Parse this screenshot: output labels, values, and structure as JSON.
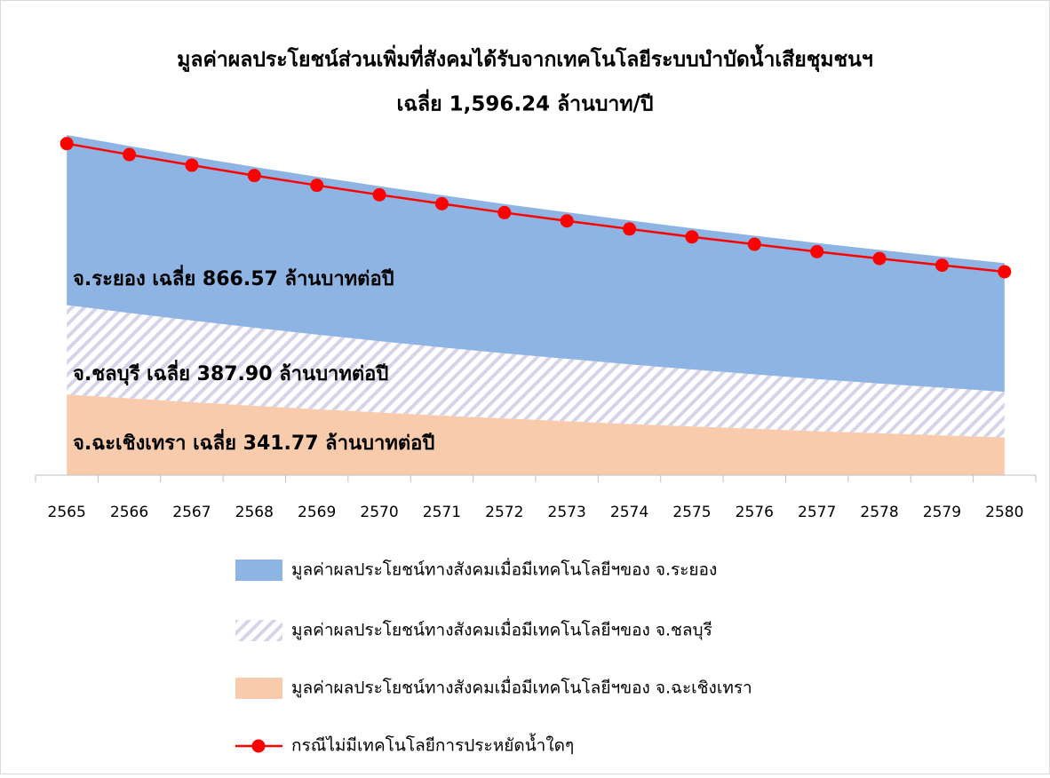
{
  "chart_data": {
    "type": "stacked_area",
    "title": "มูลค่าผลประโยชน์ส่วนเพิ่มที่สังคมได้รับจากเทคโนโลยีระบบบำบัดน้ำเสียชุมชนฯ",
    "subtitle": "เฉลี่ย 1,596.24 ล้านบาท/ปี",
    "annotations": [
      "จ.ระยอง เฉลี่ย 866.57 ล้านบาทต่อปี",
      "จ.ชลบุรี เฉลี่ย 387.90 ล้านบาทต่อปี",
      "จ.ฉะเชิงเทรา เฉลี่ย 341.77 ล้านบาทต่อปี"
    ],
    "categories": [
      "2565",
      "2566",
      "2567",
      "2568",
      "2569",
      "2570",
      "2571",
      "2572",
      "2573",
      "2574",
      "2575",
      "2576",
      "2577",
      "2578",
      "2579",
      "2580"
    ],
    "series": [
      {
        "name": "มูลค่าผลประโยชน์ทางสังคมเมื่อมีเทคโนโลยีฯของ จ.ฉะเชิงเทรา",
        "color": "#f8cbad",
        "type": "area",
        "values": [
          470,
          447,
          425,
          404,
          384,
          365,
          347,
          330,
          314,
          298,
          284,
          270,
          256,
          244,
          232,
          220
        ]
      },
      {
        "name": "มูลค่าผลประโยชน์ทางสังคมเมื่อมีเทคโนโลยีฯของ จ.ชลบุรี",
        "color": "#d9d3ea",
        "type": "area",
        "pattern": "hatch",
        "values": [
          520,
          497,
          475,
          454,
          434,
          415,
          397,
          379,
          363,
          347,
          331,
          317,
          303,
          289,
          277,
          265
        ]
      },
      {
        "name": "มูลค่าผลประโยชน์ทางสังคมเมื่อมีเทคโนโลยีฯของ จ.ระยอง",
        "color": "#8eb4e3",
        "type": "area",
        "values": [
          990,
          972,
          954,
          936,
          919,
          902,
          886,
          869,
          853,
          838,
          822,
          807,
          792,
          778,
          763,
          749
        ]
      },
      {
        "name": "กรณีไม่มีเทคโนโลยีการประหยัดน้ำใดๆ",
        "color": "#ff0000",
        "type": "line",
        "values": [
          1930,
          1866,
          1804,
          1744,
          1687,
          1632,
          1580,
          1528,
          1480,
          1433,
          1387,
          1344,
          1301,
          1261,
          1222,
          1184
        ]
      }
    ]
  }
}
